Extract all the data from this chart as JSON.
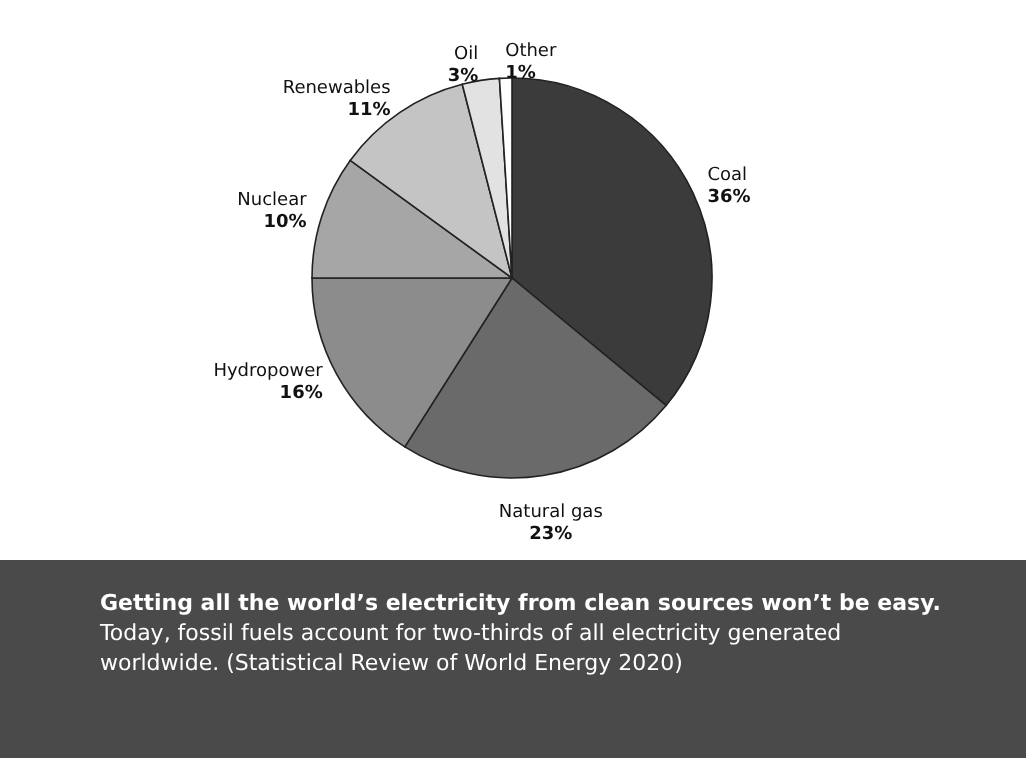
{
  "chart_data": {
    "type": "pie",
    "categories": [
      "Coal",
      "Natural gas",
      "Hydropower",
      "Nuclear",
      "Renewables",
      "Oil",
      "Other"
    ],
    "values": [
      36,
      23,
      16,
      10,
      11,
      3,
      1
    ],
    "value_labels": [
      "36%",
      "23%",
      "16%",
      "10%",
      "11%",
      "3%",
      "1%"
    ],
    "colors": [
      "#3b3b3b",
      "#6a6a6a",
      "#8c8c8c",
      "#a6a6a6",
      "#c4c4c4",
      "#e2e2e2",
      "#ffffff"
    ],
    "annotations": [
      "Getting all the world’s electricity from clean sources won’t be easy.",
      "Today, fossil fuels account for two-thirds of all electricity generated worldwide. (Statistical Review of World Energy 2020)"
    ]
  }
}
